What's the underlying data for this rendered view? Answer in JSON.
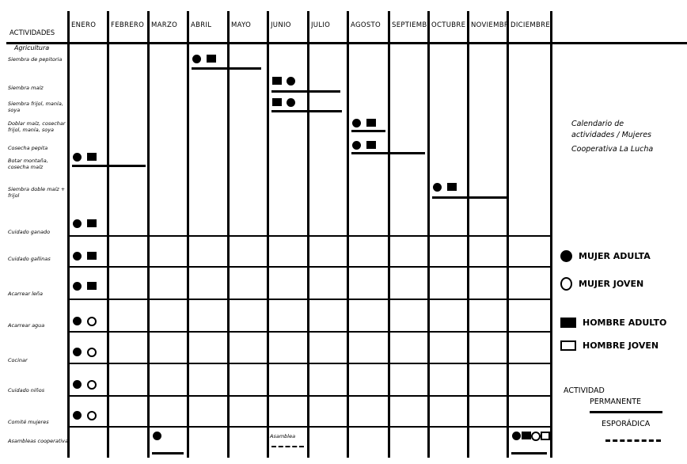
{
  "header": {
    "activities_label": "ACTIVIDADES"
  },
  "months": [
    "ENERO",
    "FEBRERO",
    "MARZO",
    "ABRIL",
    "MAYO",
    "JUNIO",
    "JULIO",
    "AGOSTO",
    "SEPTIEMBRE",
    "OCTUBRE",
    "NOVIEMBRE",
    "DICIEMBRE"
  ],
  "activities": [
    "Agricultura",
    "Siembra de pepitoria",
    "Siembra maíz",
    "Siembra frijol, manía, soya",
    "Doblar maíz, cosechar frijol, manía, soya",
    "Cosecha pepita",
    "Botar montaña, cosecha maíz",
    "Siembra doble maíz + frijol",
    "Cuidado ganado",
    "Cuidado gallinas",
    "Acarrear leña",
    "Acarrear agua",
    "Cocinar",
    "Cuidado niños",
    "Comité mujeres",
    "Asambleas cooperativa"
  ],
  "entries": [
    {
      "activity": 1,
      "start_month": 3,
      "end_month": 4,
      "symbols": [
        "mujer-adulta",
        "hombre-adulto"
      ],
      "line": "solid"
    },
    {
      "activity": 2,
      "start_month": 5,
      "end_month": 6,
      "symbols": [
        "hombre-adulto",
        "mujer-adulta"
      ],
      "line": "solid"
    },
    {
      "activity": 3,
      "start_month": 5,
      "end_month": 6,
      "symbols": [
        "hombre-adulto",
        "mujer-adulta"
      ],
      "line": "solid"
    },
    {
      "activity": 4,
      "start_month": 7,
      "end_month": 7,
      "symbols": [
        "mujer-adulta",
        "hombre-adulto"
      ],
      "line": "solid"
    },
    {
      "activity": 5,
      "start_month": 7,
      "end_month": 8,
      "symbols": [
        "mujer-adulta",
        "hombre-adulto"
      ],
      "line": "solid"
    },
    {
      "activity": 6,
      "start_month": 0,
      "end_month": 1,
      "symbols": [
        "mujer-adulta",
        "hombre-adulto"
      ],
      "line": "solid"
    },
    {
      "activity": 7,
      "start_month": 9,
      "end_month": 10,
      "symbols": [
        "mujer-adulta",
        "hombre-adulto"
      ],
      "line": "solid"
    },
    {
      "activity": 8,
      "start_month": 0,
      "end_month": 11,
      "symbols": [
        "mujer-adulta",
        "hombre-adulto"
      ],
      "line": "none"
    },
    {
      "activity": 9,
      "start_month": 0,
      "end_month": 11,
      "symbols": [
        "mujer-adulta",
        "hombre-adulto"
      ],
      "line": "none"
    },
    {
      "activity": 10,
      "start_month": 0,
      "end_month": 11,
      "symbols": [
        "mujer-adulta",
        "hombre-adulto"
      ],
      "line": "none"
    },
    {
      "activity": 11,
      "start_month": 0,
      "end_month": 11,
      "symbols": [
        "mujer-adulta",
        "mujer-joven"
      ],
      "line": "none"
    },
    {
      "activity": 12,
      "start_month": 0,
      "end_month": 11,
      "symbols": [
        "mujer-adulta",
        "mujer-joven"
      ],
      "line": "none"
    },
    {
      "activity": 13,
      "start_month": 0,
      "end_month": 11,
      "symbols": [
        "mujer-adulta",
        "mujer-joven"
      ],
      "line": "none"
    },
    {
      "activity": 14,
      "start_month": 0,
      "end_month": 11,
      "symbols": [
        "mujer-adulta",
        "mujer-joven"
      ],
      "line": "none"
    },
    {
      "activity": 15,
      "start_month": 2,
      "end_month": 2,
      "symbols": [
        "mujer-adulta"
      ],
      "line": "solid"
    },
    {
      "activity": 15,
      "start_month": 5,
      "end_month": 5,
      "symbols": [],
      "label": "Asamblea",
      "line": "dashed"
    },
    {
      "activity": 15,
      "start_month": 11,
      "end_month": 11,
      "symbols": [
        "mujer-adulta",
        "hombre-adulto",
        "mujer-joven",
        "hombre-joven"
      ],
      "line": "solid"
    }
  ],
  "title": [
    "Calendario de",
    "actividades / Mujeres",
    "Cooperativa La Lucha"
  ],
  "legend": [
    {
      "symbol": "mujer-adulta",
      "label": "MUJER ADULTA"
    },
    {
      "symbol": "mujer-joven",
      "label": "MUJER JOVEN"
    },
    {
      "symbol": "hombre-adulto",
      "label": "HOMBRE ADULTO"
    },
    {
      "symbol": "hombre-joven",
      "label": "HOMBRE JOVEN"
    }
  ],
  "duration_legend": {
    "heading": "ACTIVIDAD",
    "permanent": "PERMANENTE",
    "sporadic": "ESPORÁDICA"
  }
}
